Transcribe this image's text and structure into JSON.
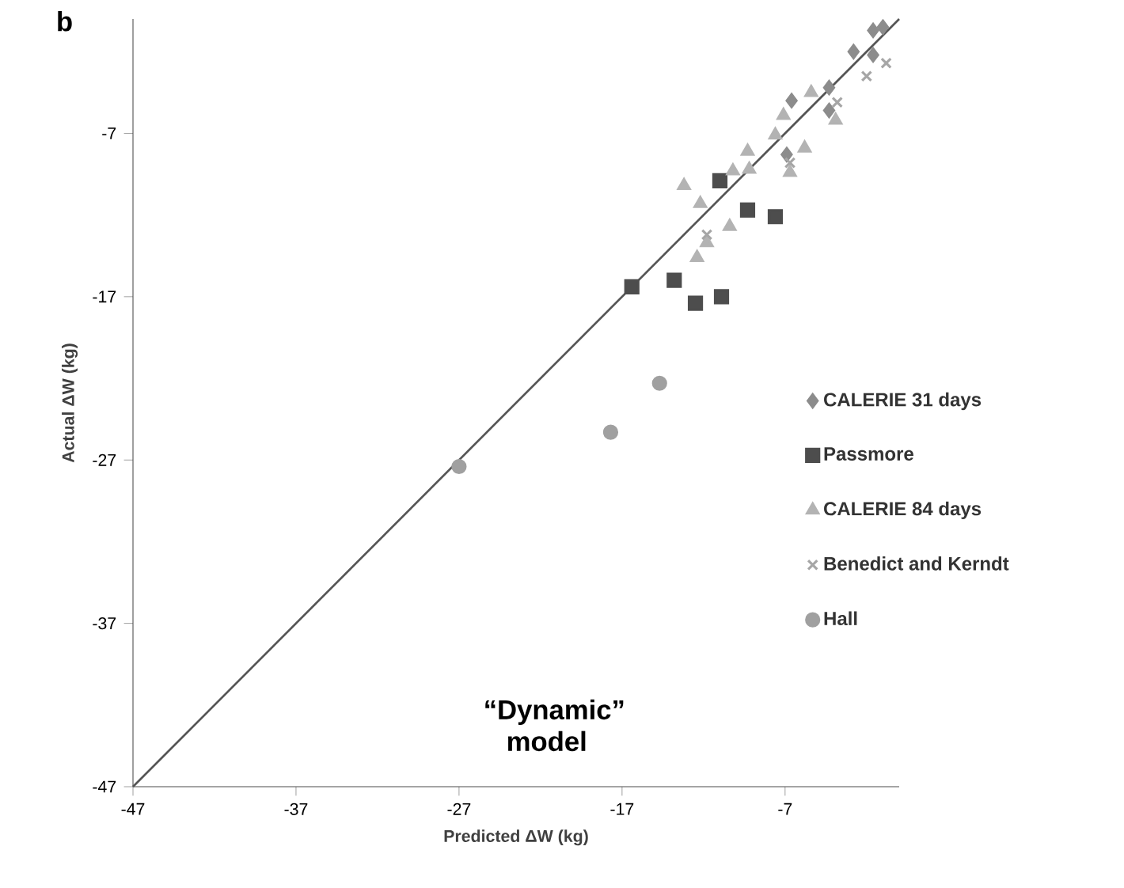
{
  "chart_data": {
    "type": "scatter",
    "xlabel": "Predicted ΔW (kg)",
    "ylabel": "Actual ΔW (kg)",
    "annotations": [
      "b",
      "“Dynamic” model"
    ],
    "xlim": [
      -47,
      0
    ],
    "ylim": [
      -47,
      0
    ],
    "xticks": [
      -47,
      -37,
      -27,
      -17,
      -7
    ],
    "yticks": [
      -47,
      -37,
      -27,
      -17,
      -7
    ],
    "grid": false,
    "legend": "right",
    "series": [
      {
        "name": "CALERIE 31 days",
        "color": "#8c8c8c",
        "marker": "diamond",
        "x": [
          -6.6,
          -2.8,
          -1.6,
          -1.0,
          -6.9,
          -4.3,
          -4.3,
          -1.6
        ],
        "values": [
          -5.0,
          -2.0,
          -0.7,
          -0.5,
          -8.3,
          -4.2,
          -5.6,
          -2.2
        ]
      },
      {
        "name": "Passmore",
        "color": "#4d4d4d",
        "marker": "square",
        "x": [
          -16.4,
          -13.8,
          -12.5,
          -10.9,
          -11.0,
          -9.3,
          -7.6
        ],
        "values": [
          -16.4,
          -16.0,
          -17.4,
          -17.0,
          -9.9,
          -11.7,
          -12.1
        ]
      },
      {
        "name": "CALERIE 84 days",
        "color": "#b3b3b3",
        "marker": "triangle",
        "x": [
          -13.2,
          -12.2,
          -10.4,
          -12.4,
          -11.8,
          -10.2,
          -9.3,
          -9.2,
          -7.6,
          -7.1,
          -6.7,
          -5.8,
          -5.4,
          -3.9
        ],
        "values": [
          -10.2,
          -11.3,
          -12.7,
          -14.6,
          -13.7,
          -9.3,
          -8.1,
          -9.2,
          -7.1,
          -5.9,
          -9.4,
          -7.9,
          -4.5,
          -6.2
        ]
      },
      {
        "name": "Benedict and Kerndt",
        "color": "#a6a6a6",
        "marker": "cross",
        "x": [
          -11.8,
          -0.8,
          -2.0,
          -3.8,
          -6.7
        ],
        "values": [
          -13.2,
          -2.7,
          -3.5,
          -5.1,
          -8.8
        ]
      },
      {
        "name": "Hall",
        "color": "#a0a0a0",
        "marker": "circle",
        "x": [
          -14.7,
          -17.7,
          -27.0
        ],
        "values": [
          -22.3,
          -25.3,
          -27.4
        ]
      },
      {
        "type": "line",
        "color": "#555555",
        "marker": "none",
        "line_style": "solid",
        "x": [
          -47,
          0
        ],
        "values": [
          -47,
          0
        ]
      }
    ]
  }
}
